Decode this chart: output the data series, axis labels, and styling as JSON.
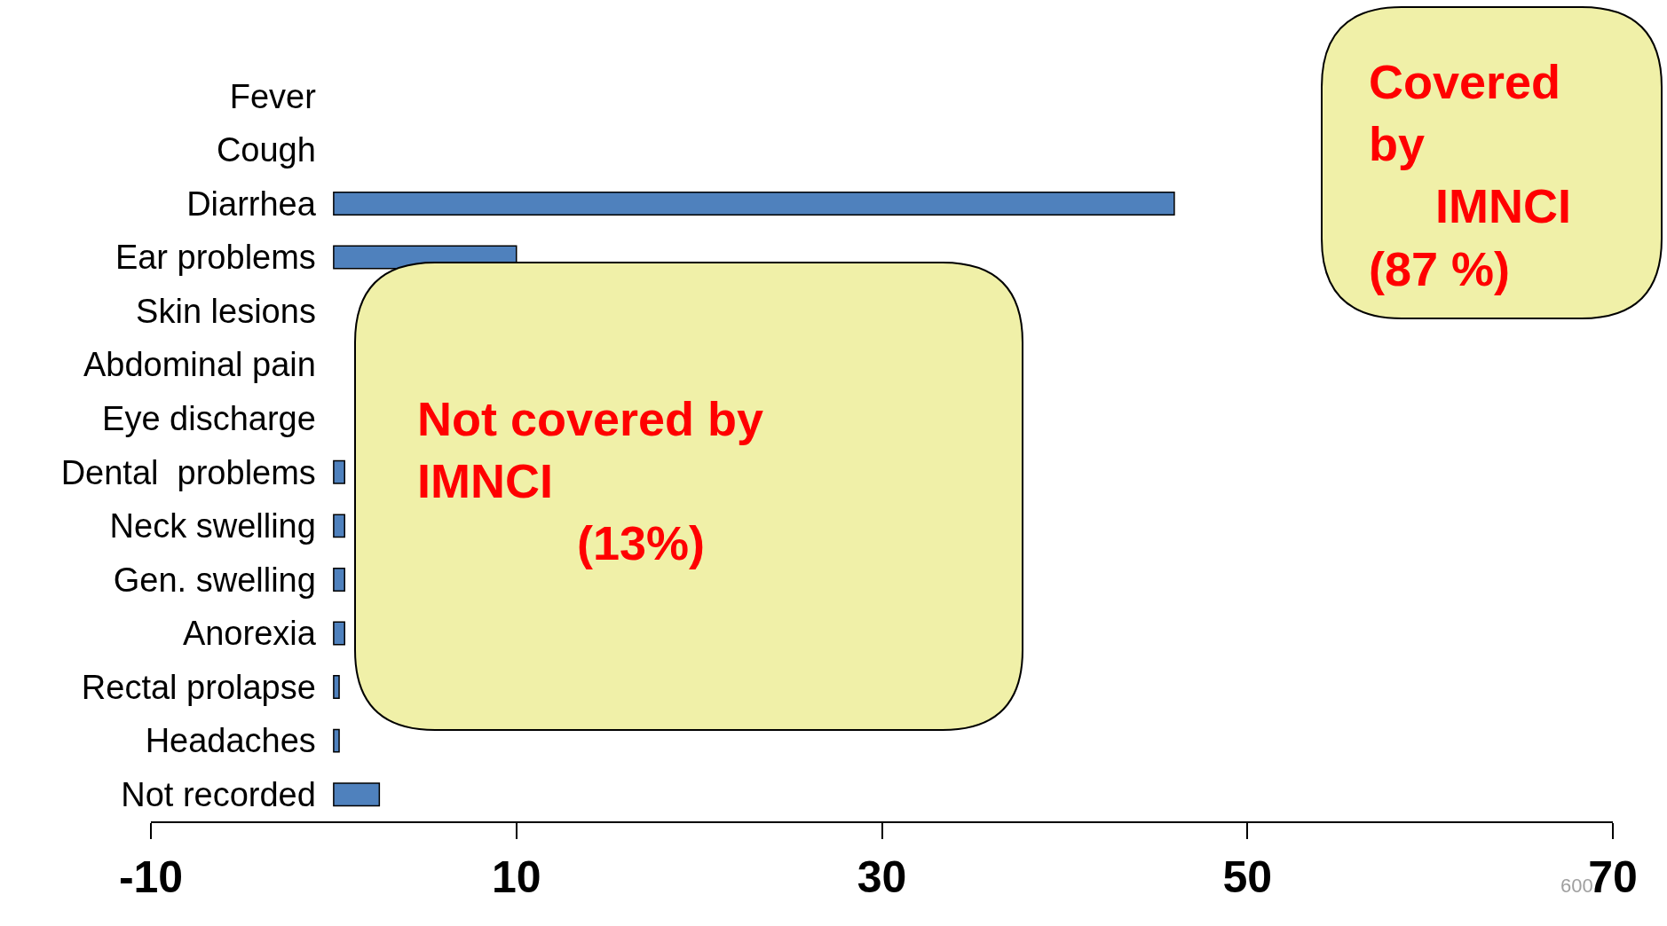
{
  "chart_data": {
    "type": "bar",
    "orientation": "horizontal",
    "categories": [
      "Fever",
      "Cough",
      "Diarrhea",
      "Ear problems",
      "Skin lesions",
      "Abdominal pain",
      "Eye discharge",
      "Dental  problems",
      "Neck swelling",
      "Gen. swelling",
      "Anorexia",
      "Rectal prolapse",
      "Headaches",
      "Not recorded"
    ],
    "values": [
      null,
      null,
      46,
      10,
      null,
      null,
      null,
      0.6,
      0.6,
      0.6,
      0.6,
      0.3,
      0.3,
      2.5
    ],
    "color": "#4f81bd",
    "xlim": [
      -10,
      70
    ],
    "xticks": [
      -10,
      10,
      30,
      50,
      70
    ],
    "grid": false,
    "legend": false,
    "annotations": [
      "Covered\nby\n     IMNCI\n(87 %)",
      "Not covered by\nIMNCI\n            (13%)",
      "600"
    ]
  }
}
